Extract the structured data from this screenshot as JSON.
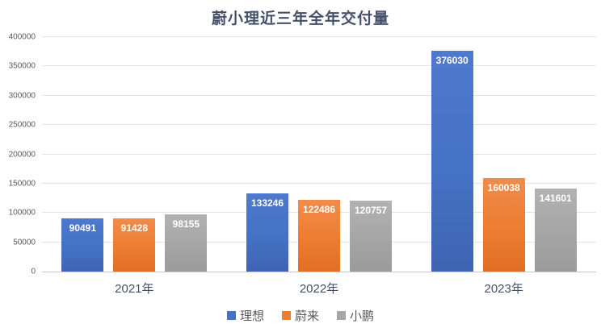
{
  "chart_data": {
    "type": "bar",
    "title": "蔚小理近三年全年交付量",
    "categories": [
      "2021年",
      "2022年",
      "2023年"
    ],
    "series": [
      {
        "name": "理想",
        "color": "#4472C4",
        "color_light": "#4E79CE",
        "color_dark": "#3E64B2",
        "values": [
          90491,
          133246,
          376030
        ]
      },
      {
        "name": "蔚来",
        "color": "#ED7D31",
        "color_light": "#F08C4A",
        "color_dark": "#E06F23",
        "values": [
          91428,
          122486,
          160038
        ]
      },
      {
        "name": "小鹏",
        "color": "#A5A5A5",
        "color_light": "#B2B2B2",
        "color_dark": "#9B9B9B",
        "values": [
          98155,
          120757,
          141601
        ]
      }
    ],
    "ylim": [
      0,
      400000
    ],
    "ytick_step": 50000,
    "ytick_labels": [
      "0",
      "50000",
      "100000",
      "150000",
      "200000",
      "250000",
      "300000",
      "350000",
      "400000"
    ],
    "grid": "horizontal",
    "legend_position": "bottom",
    "xlabel": "",
    "ylabel": "",
    "colors": {
      "title_text": "#44506A",
      "axis_text": "#595959",
      "gridline": "#E3E3E3",
      "bar_value_text": "#FFFFFF"
    }
  }
}
